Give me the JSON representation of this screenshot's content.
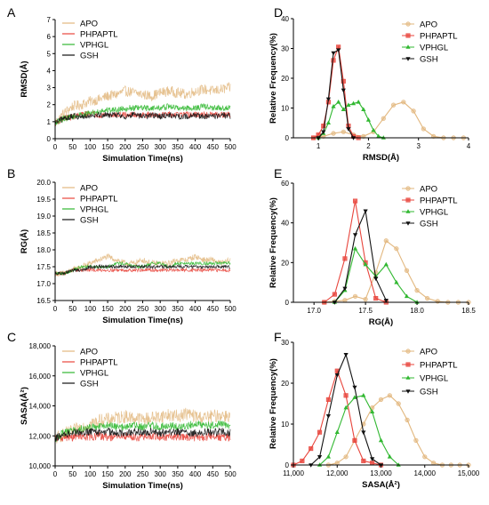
{
  "series_names": [
    "APO",
    "PHPAPTL",
    "VPHGL",
    "GSH"
  ],
  "colors": {
    "APO": "#E2B77E",
    "PHPAPTL": "#E8453C",
    "VPHGL": "#31B831",
    "GSH": "#111111"
  },
  "chart_data": [
    {
      "panel": "A",
      "type": "line",
      "xlabel": "Simulation Time(ns)",
      "ylabel": "RMSD(Å)",
      "xlim": [
        0,
        500
      ],
      "ylim": [
        0,
        7
      ],
      "xticks": [
        0,
        50,
        100,
        150,
        200,
        250,
        300,
        350,
        400,
        450,
        500
      ],
      "yticks": [
        0,
        1,
        2,
        3,
        4,
        5,
        6,
        7
      ],
      "legend": "top-left",
      "series": [
        {
          "name": "APO",
          "x": [
            0,
            25,
            50,
            75,
            100,
            125,
            150,
            175,
            200,
            225,
            250,
            275,
            300,
            325,
            350,
            375,
            400,
            425,
            450,
            475,
            500
          ],
          "values": [
            0.9,
            1.5,
            1.9,
            2.0,
            2.2,
            2.3,
            2.5,
            2.6,
            2.8,
            2.7,
            2.6,
            2.5,
            2.7,
            2.8,
            2.7,
            2.6,
            2.8,
            2.9,
            2.8,
            2.9,
            3.0
          ]
        },
        {
          "name": "PHPAPTL",
          "x": [
            0,
            25,
            50,
            75,
            100,
            125,
            150,
            175,
            200,
            225,
            250,
            275,
            300,
            325,
            350,
            375,
            400,
            425,
            450,
            475,
            500
          ],
          "values": [
            0.9,
            1.2,
            1.3,
            1.4,
            1.5,
            1.4,
            1.4,
            1.4,
            1.4,
            1.4,
            1.4,
            1.4,
            1.4,
            1.4,
            1.4,
            1.4,
            1.4,
            1.4,
            1.4,
            1.4,
            1.4
          ]
        },
        {
          "name": "VPHGL",
          "x": [
            0,
            25,
            50,
            75,
            100,
            125,
            150,
            175,
            200,
            225,
            250,
            275,
            300,
            325,
            350,
            375,
            400,
            425,
            450,
            475,
            500
          ],
          "values": [
            0.9,
            1.2,
            1.3,
            1.4,
            1.5,
            1.6,
            1.7,
            1.7,
            1.8,
            1.8,
            1.8,
            1.8,
            1.8,
            1.9,
            1.8,
            1.8,
            1.8,
            1.9,
            1.8,
            1.8,
            1.8
          ]
        },
        {
          "name": "GSH",
          "x": [
            0,
            25,
            50,
            75,
            100,
            125,
            150,
            175,
            200,
            225,
            250,
            275,
            300,
            325,
            350,
            375,
            400,
            425,
            450,
            475,
            500
          ],
          "values": [
            0.9,
            1.2,
            1.3,
            1.3,
            1.4,
            1.4,
            1.4,
            1.4,
            1.3,
            1.4,
            1.3,
            1.4,
            1.3,
            1.4,
            1.3,
            1.3,
            1.4,
            1.3,
            1.3,
            1.4,
            1.3
          ]
        }
      ]
    },
    {
      "panel": "B",
      "type": "line",
      "xlabel": "Simulation Time(ns)",
      "ylabel": "RG(Å)",
      "xlim": [
        0,
        500
      ],
      "ylim": [
        16.5,
        20.0
      ],
      "xticks": [
        0,
        50,
        100,
        150,
        200,
        250,
        300,
        350,
        400,
        450,
        500
      ],
      "yticks": [
        16.5,
        17.0,
        17.5,
        18.0,
        18.5,
        19.0,
        19.5,
        20.0
      ],
      "legend": "top-left",
      "series": [
        {
          "name": "APO",
          "x": [
            0,
            25,
            50,
            75,
            100,
            125,
            150,
            175,
            200,
            225,
            250,
            275,
            300,
            325,
            350,
            375,
            400,
            425,
            450,
            475,
            500
          ],
          "values": [
            17.3,
            17.3,
            17.4,
            17.5,
            17.6,
            17.7,
            17.8,
            17.7,
            17.6,
            17.6,
            17.7,
            17.6,
            17.6,
            17.6,
            17.7,
            17.7,
            17.8,
            17.7,
            17.7,
            17.6,
            17.7
          ]
        },
        {
          "name": "PHPAPTL",
          "x": [
            0,
            25,
            50,
            75,
            100,
            125,
            150,
            175,
            200,
            225,
            250,
            275,
            300,
            325,
            350,
            375,
            400,
            425,
            450,
            475,
            500
          ],
          "values": [
            17.3,
            17.3,
            17.4,
            17.4,
            17.4,
            17.4,
            17.4,
            17.4,
            17.4,
            17.4,
            17.4,
            17.4,
            17.4,
            17.4,
            17.4,
            17.4,
            17.4,
            17.4,
            17.4,
            17.4,
            17.4
          ]
        },
        {
          "name": "VPHGL",
          "x": [
            0,
            25,
            50,
            75,
            100,
            125,
            150,
            175,
            200,
            225,
            250,
            275,
            300,
            325,
            350,
            375,
            400,
            425,
            450,
            475,
            500
          ],
          "values": [
            17.3,
            17.3,
            17.4,
            17.5,
            17.5,
            17.5,
            17.5,
            17.6,
            17.6,
            17.5,
            17.5,
            17.6,
            17.6,
            17.5,
            17.6,
            17.6,
            17.6,
            17.6,
            17.6,
            17.6,
            17.6
          ]
        },
        {
          "name": "GSH",
          "x": [
            0,
            25,
            50,
            75,
            100,
            125,
            150,
            175,
            200,
            225,
            250,
            275,
            300,
            325,
            350,
            375,
            400,
            425,
            450,
            475,
            500
          ],
          "values": [
            17.3,
            17.3,
            17.4,
            17.4,
            17.5,
            17.5,
            17.5,
            17.5,
            17.5,
            17.5,
            17.5,
            17.5,
            17.5,
            17.5,
            17.5,
            17.5,
            17.5,
            17.5,
            17.5,
            17.5,
            17.5
          ]
        }
      ]
    },
    {
      "panel": "C",
      "type": "line",
      "xlabel": "Simulation Time(ns)",
      "ylabel": "SASA(Å²)",
      "xlim": [
        0,
        500
      ],
      "ylim": [
        10000,
        18000
      ],
      "xticks": [
        0,
        50,
        100,
        150,
        200,
        250,
        300,
        350,
        400,
        450,
        500
      ],
      "yticks": [
        10000,
        12000,
        14000,
        16000,
        18000
      ],
      "yticklabels": [
        "10,000",
        "12,000",
        "14,000",
        "16,000",
        "18,000"
      ],
      "legend": "top-left",
      "series": [
        {
          "name": "APO",
          "x": [
            0,
            25,
            50,
            75,
            100,
            125,
            150,
            175,
            200,
            225,
            250,
            275,
            300,
            325,
            350,
            375,
            400,
            425,
            450,
            475,
            500
          ],
          "values": [
            11800,
            12100,
            12300,
            12600,
            12800,
            13000,
            13100,
            13200,
            13300,
            13200,
            13100,
            13200,
            13300,
            13400,
            13300,
            13500,
            13300,
            13200,
            13300,
            13400,
            13300
          ]
        },
        {
          "name": "PHPAPTL",
          "x": [
            0,
            25,
            50,
            75,
            100,
            125,
            150,
            175,
            200,
            225,
            250,
            275,
            300,
            325,
            350,
            375,
            400,
            425,
            450,
            475,
            500
          ],
          "values": [
            11800,
            11900,
            11900,
            12000,
            11900,
            12000,
            11900,
            11900,
            12000,
            11900,
            11900,
            12000,
            11900,
            11900,
            12000,
            11900,
            11900,
            11900,
            12000,
            11900,
            11900
          ]
        },
        {
          "name": "VPHGL",
          "x": [
            0,
            25,
            50,
            75,
            100,
            125,
            150,
            175,
            200,
            225,
            250,
            275,
            300,
            325,
            350,
            375,
            400,
            425,
            450,
            475,
            500
          ],
          "values": [
            11800,
            12200,
            12300,
            12500,
            12600,
            12600,
            12700,
            12600,
            12600,
            12700,
            12600,
            12700,
            12600,
            12700,
            12600,
            12700,
            12800,
            12700,
            12700,
            12800,
            12700
          ]
        },
        {
          "name": "GSH",
          "x": [
            0,
            25,
            50,
            75,
            100,
            125,
            150,
            175,
            200,
            225,
            250,
            275,
            300,
            325,
            350,
            375,
            400,
            425,
            450,
            475,
            500
          ],
          "values": [
            11800,
            12100,
            12200,
            12200,
            12300,
            12200,
            12300,
            12200,
            12200,
            12300,
            12200,
            12300,
            12200,
            12200,
            12300,
            12200,
            12200,
            12300,
            12200,
            12300,
            12200
          ]
        }
      ]
    },
    {
      "panel": "D",
      "type": "line",
      "xlabel": "RMSD(Å)",
      "ylabel": "Relative Frequency(%)",
      "xlim": [
        0.5,
        4.0
      ],
      "ylim": [
        0,
        40
      ],
      "xticks": [
        1,
        2,
        3,
        4
      ],
      "yticks": [
        0,
        10,
        20,
        30,
        40
      ],
      "legend": "top-right",
      "series": [
        {
          "name": "APO",
          "x": [
            0.9,
            1.1,
            1.3,
            1.5,
            1.7,
            1.9,
            2.1,
            2.3,
            2.5,
            2.7,
            2.9,
            3.1,
            3.3,
            3.5,
            3.7,
            3.9
          ],
          "values": [
            0,
            0.5,
            1.5,
            2,
            1,
            0.5,
            2,
            6.5,
            11,
            12,
            9,
            3,
            0.5,
            0,
            0,
            0
          ]
        },
        {
          "name": "PHPAPTL",
          "x": [
            0.9,
            1.0,
            1.1,
            1.2,
            1.3,
            1.4,
            1.5,
            1.6,
            1.7,
            1.8
          ],
          "values": [
            0,
            1,
            4,
            12,
            26,
            30.5,
            19,
            4,
            0.5,
            0
          ]
        },
        {
          "name": "VPHGL",
          "x": [
            1.0,
            1.1,
            1.2,
            1.3,
            1.4,
            1.5,
            1.6,
            1.7,
            1.8,
            1.9,
            2.0,
            2.1,
            2.2,
            2.3
          ],
          "values": [
            0,
            1.5,
            5,
            10.5,
            12,
            9.5,
            11,
            11.5,
            12,
            9.5,
            6,
            2.5,
            0.5,
            0
          ]
        },
        {
          "name": "GSH",
          "x": [
            1.0,
            1.1,
            1.2,
            1.3,
            1.4,
            1.5,
            1.6,
            1.7
          ],
          "values": [
            0,
            2,
            13,
            28.5,
            29.5,
            16,
            3,
            0
          ]
        }
      ]
    },
    {
      "panel": "E",
      "type": "line",
      "xlabel": "RG(Å)",
      "ylabel": "Relative Frequency(%)",
      "xlim": [
        16.8,
        18.5
      ],
      "ylim": [
        0,
        60
      ],
      "xticks": [
        17.0,
        17.5,
        18.0,
        18.5
      ],
      "yticks": [
        0,
        20,
        40,
        60
      ],
      "legend": "top-right",
      "series": [
        {
          "name": "APO",
          "x": [
            17.1,
            17.2,
            17.3,
            17.4,
            17.5,
            17.6,
            17.7,
            17.8,
            17.9,
            18.0,
            18.1,
            18.2,
            18.3,
            18.4,
            18.5
          ],
          "values": [
            0,
            0.5,
            1,
            3,
            1.5,
            15,
            31,
            27,
            16,
            6,
            2,
            0.5,
            0,
            0,
            0
          ]
        },
        {
          "name": "PHPAPTL",
          "x": [
            17.1,
            17.2,
            17.3,
            17.4,
            17.5,
            17.6,
            17.7
          ],
          "values": [
            0,
            4,
            22,
            51,
            20,
            2,
            0
          ]
        },
        {
          "name": "VPHGL",
          "x": [
            17.2,
            17.3,
            17.4,
            17.5,
            17.6,
            17.7,
            17.8,
            17.9,
            18.0
          ],
          "values": [
            0,
            6,
            27,
            19,
            13,
            19,
            10,
            3,
            0
          ]
        },
        {
          "name": "GSH",
          "x": [
            17.2,
            17.3,
            17.4,
            17.5,
            17.6,
            17.7
          ],
          "values": [
            0,
            7,
            34,
            46,
            12,
            1
          ]
        }
      ]
    },
    {
      "panel": "F",
      "type": "line",
      "xlabel": "SASA(Å²)",
      "ylabel": "Relative Frequency(%)",
      "xlim": [
        11000,
        15000
      ],
      "ylim": [
        0,
        30
      ],
      "xticks": [
        11000,
        12000,
        13000,
        14000,
        15000
      ],
      "xticklabels": [
        "11,000",
        "12,000",
        "13,000",
        "14,000",
        "15,000"
      ],
      "yticks": [
        0,
        10,
        20,
        30
      ],
      "legend": "top-right",
      "series": [
        {
          "name": "APO",
          "x": [
            11800,
            12000,
            12200,
            12400,
            12600,
            12800,
            13000,
            13200,
            13400,
            13600,
            13800,
            14000,
            14200,
            14400,
            14600,
            14800,
            15000
          ],
          "values": [
            0,
            0.5,
            2,
            6,
            10,
            14,
            16,
            17,
            15,
            11,
            6,
            2,
            0.5,
            0,
            0,
            0,
            0
          ]
        },
        {
          "name": "PHPAPTL",
          "x": [
            11000,
            11200,
            11400,
            11600,
            11800,
            12000,
            12200,
            12400,
            12600,
            12800,
            13000
          ],
          "values": [
            0,
            1,
            4,
            8,
            16,
            23,
            17,
            6,
            1,
            0.5,
            0
          ]
        },
        {
          "name": "VPHGL",
          "x": [
            11600,
            11800,
            12000,
            12200,
            12400,
            12600,
            12800,
            13000,
            13200,
            13400
          ],
          "values": [
            0,
            2,
            8,
            14,
            16.5,
            17,
            13,
            6,
            2,
            0
          ]
        },
        {
          "name": "GSH",
          "x": [
            11400,
            11600,
            11800,
            12000,
            12200,
            12400,
            12600,
            12800,
            13000
          ],
          "values": [
            0,
            2,
            12,
            22,
            27,
            19,
            8,
            1.5,
            0
          ]
        }
      ]
    }
  ]
}
